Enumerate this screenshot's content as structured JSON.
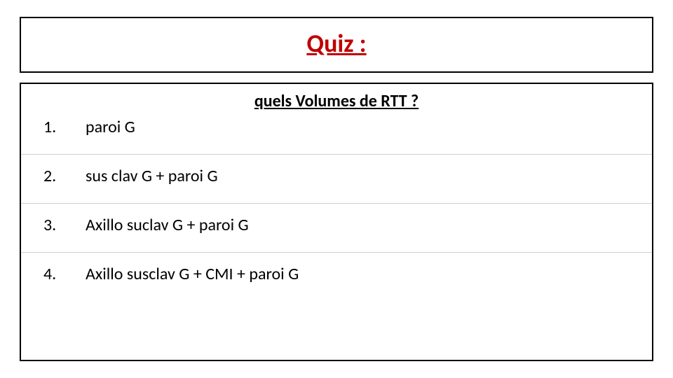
{
  "title": "Quiz :",
  "title_color": "#c00000",
  "title_fontsize": 36,
  "subtitle": "quels Volumes de RTT ?",
  "subtitle_fontsize": 24,
  "options": [
    {
      "num": "1.",
      "text": " paroi G"
    },
    {
      "num": "2.",
      "text": "sus clav G + paroi G"
    },
    {
      "num": "3.",
      "text": "Axillo suclav G + paroi G"
    },
    {
      "num": "4.",
      "text": "Axillo susclav G + CMI + paroi G"
    }
  ],
  "option_fontsize": 24,
  "border_color": "#000000",
  "row_divider_color": "#cfcfcf",
  "background_color": "#ffffff"
}
